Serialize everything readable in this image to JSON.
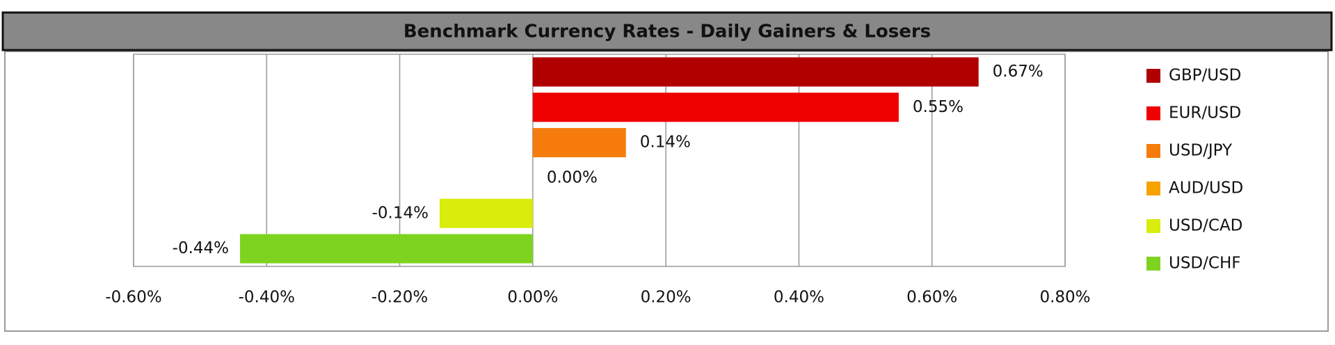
{
  "chart_data": {
    "type": "hbar",
    "title": "Benchmark Currency Rates - Daily Gainers & Losers",
    "categories": [
      "GBP/USD",
      "EUR/USD",
      "USD/JPY",
      "AUD/USD",
      "USD/CAD",
      "USD/CHF"
    ],
    "values": [
      0.67,
      0.55,
      0.14,
      0.0,
      -0.14,
      -0.44
    ],
    "value_labels": [
      "0.67%",
      "0.55%",
      "0.14%",
      "0.00%",
      "-0.14%",
      "-0.44%"
    ],
    "colors": [
      "#b00000",
      "#ee0000",
      "#f57c0c",
      "#f6a200",
      "#d9ec0c",
      "#7ed321"
    ],
    "xlim": [
      -0.6,
      0.8
    ],
    "xticks": [
      {
        "value": -0.6,
        "label": "-0.60%"
      },
      {
        "value": -0.4,
        "label": "-0.40%"
      },
      {
        "value": -0.2,
        "label": "-0.20%"
      },
      {
        "value": 0,
        "label": "0.00%"
      },
      {
        "value": 0.2,
        "label": "0.20%"
      },
      {
        "value": 0.4,
        "label": "0.40%"
      },
      {
        "value": 0.6,
        "label": "0.60%"
      },
      {
        "value": 0.8,
        "label": "0.80%"
      }
    ],
    "grid": true,
    "legend": "right"
  }
}
